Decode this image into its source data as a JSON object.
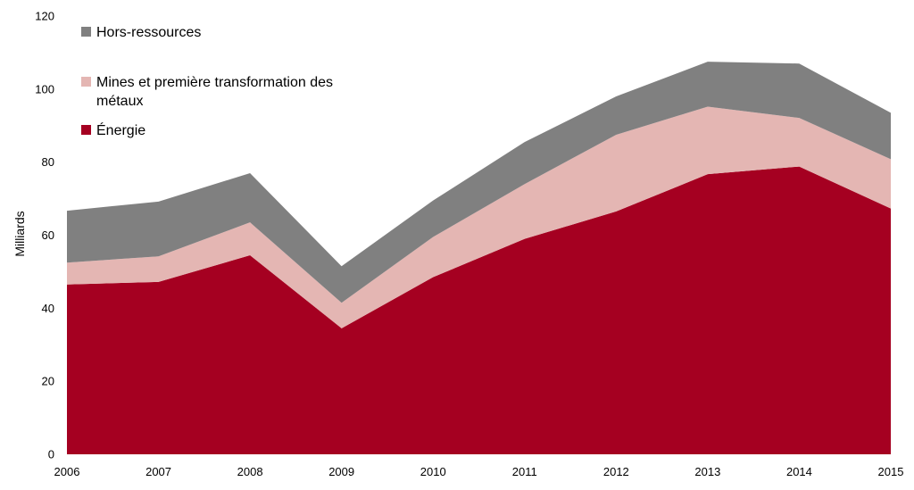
{
  "chart_data": {
    "type": "area",
    "stacked": true,
    "x": [
      "2006",
      "2007",
      "2008",
      "2009",
      "2010",
      "2011",
      "2012",
      "2013",
      "2014",
      "2015"
    ],
    "series": [
      {
        "name": "Énergie",
        "color": "#a50021",
        "values": [
          46.5,
          47.2,
          54.5,
          34.5,
          48.5,
          59.0,
          66.5,
          76.7,
          78.8,
          67.3
        ]
      },
      {
        "name": "Mines et première transformation des métaux",
        "color": "#e4b6b3",
        "values": [
          6.0,
          7.0,
          9.0,
          7.0,
          11.0,
          15.0,
          21.0,
          18.5,
          13.3,
          13.5
        ]
      },
      {
        "name": "Hors-ressources",
        "color": "#808080",
        "values": [
          14.2,
          15.0,
          13.5,
          10.0,
          10.0,
          11.5,
          10.5,
          12.3,
          14.9,
          12.7
        ]
      }
    ],
    "ylabel": "Milliards",
    "ylim": [
      0,
      120
    ],
    "yticks": [
      "0",
      "20",
      "40",
      "60",
      "80",
      "100",
      "120"
    ],
    "grid": false,
    "legend": {
      "placement": "top-left",
      "entries": [
        {
          "label": "Hors-ressources",
          "color": "#808080"
        },
        {
          "label_lines": [
            "Mines et première transformation des",
            "métaux"
          ],
          "color": "#e4b6b3"
        },
        {
          "label": "Énergie",
          "color": "#a50021"
        }
      ]
    }
  }
}
